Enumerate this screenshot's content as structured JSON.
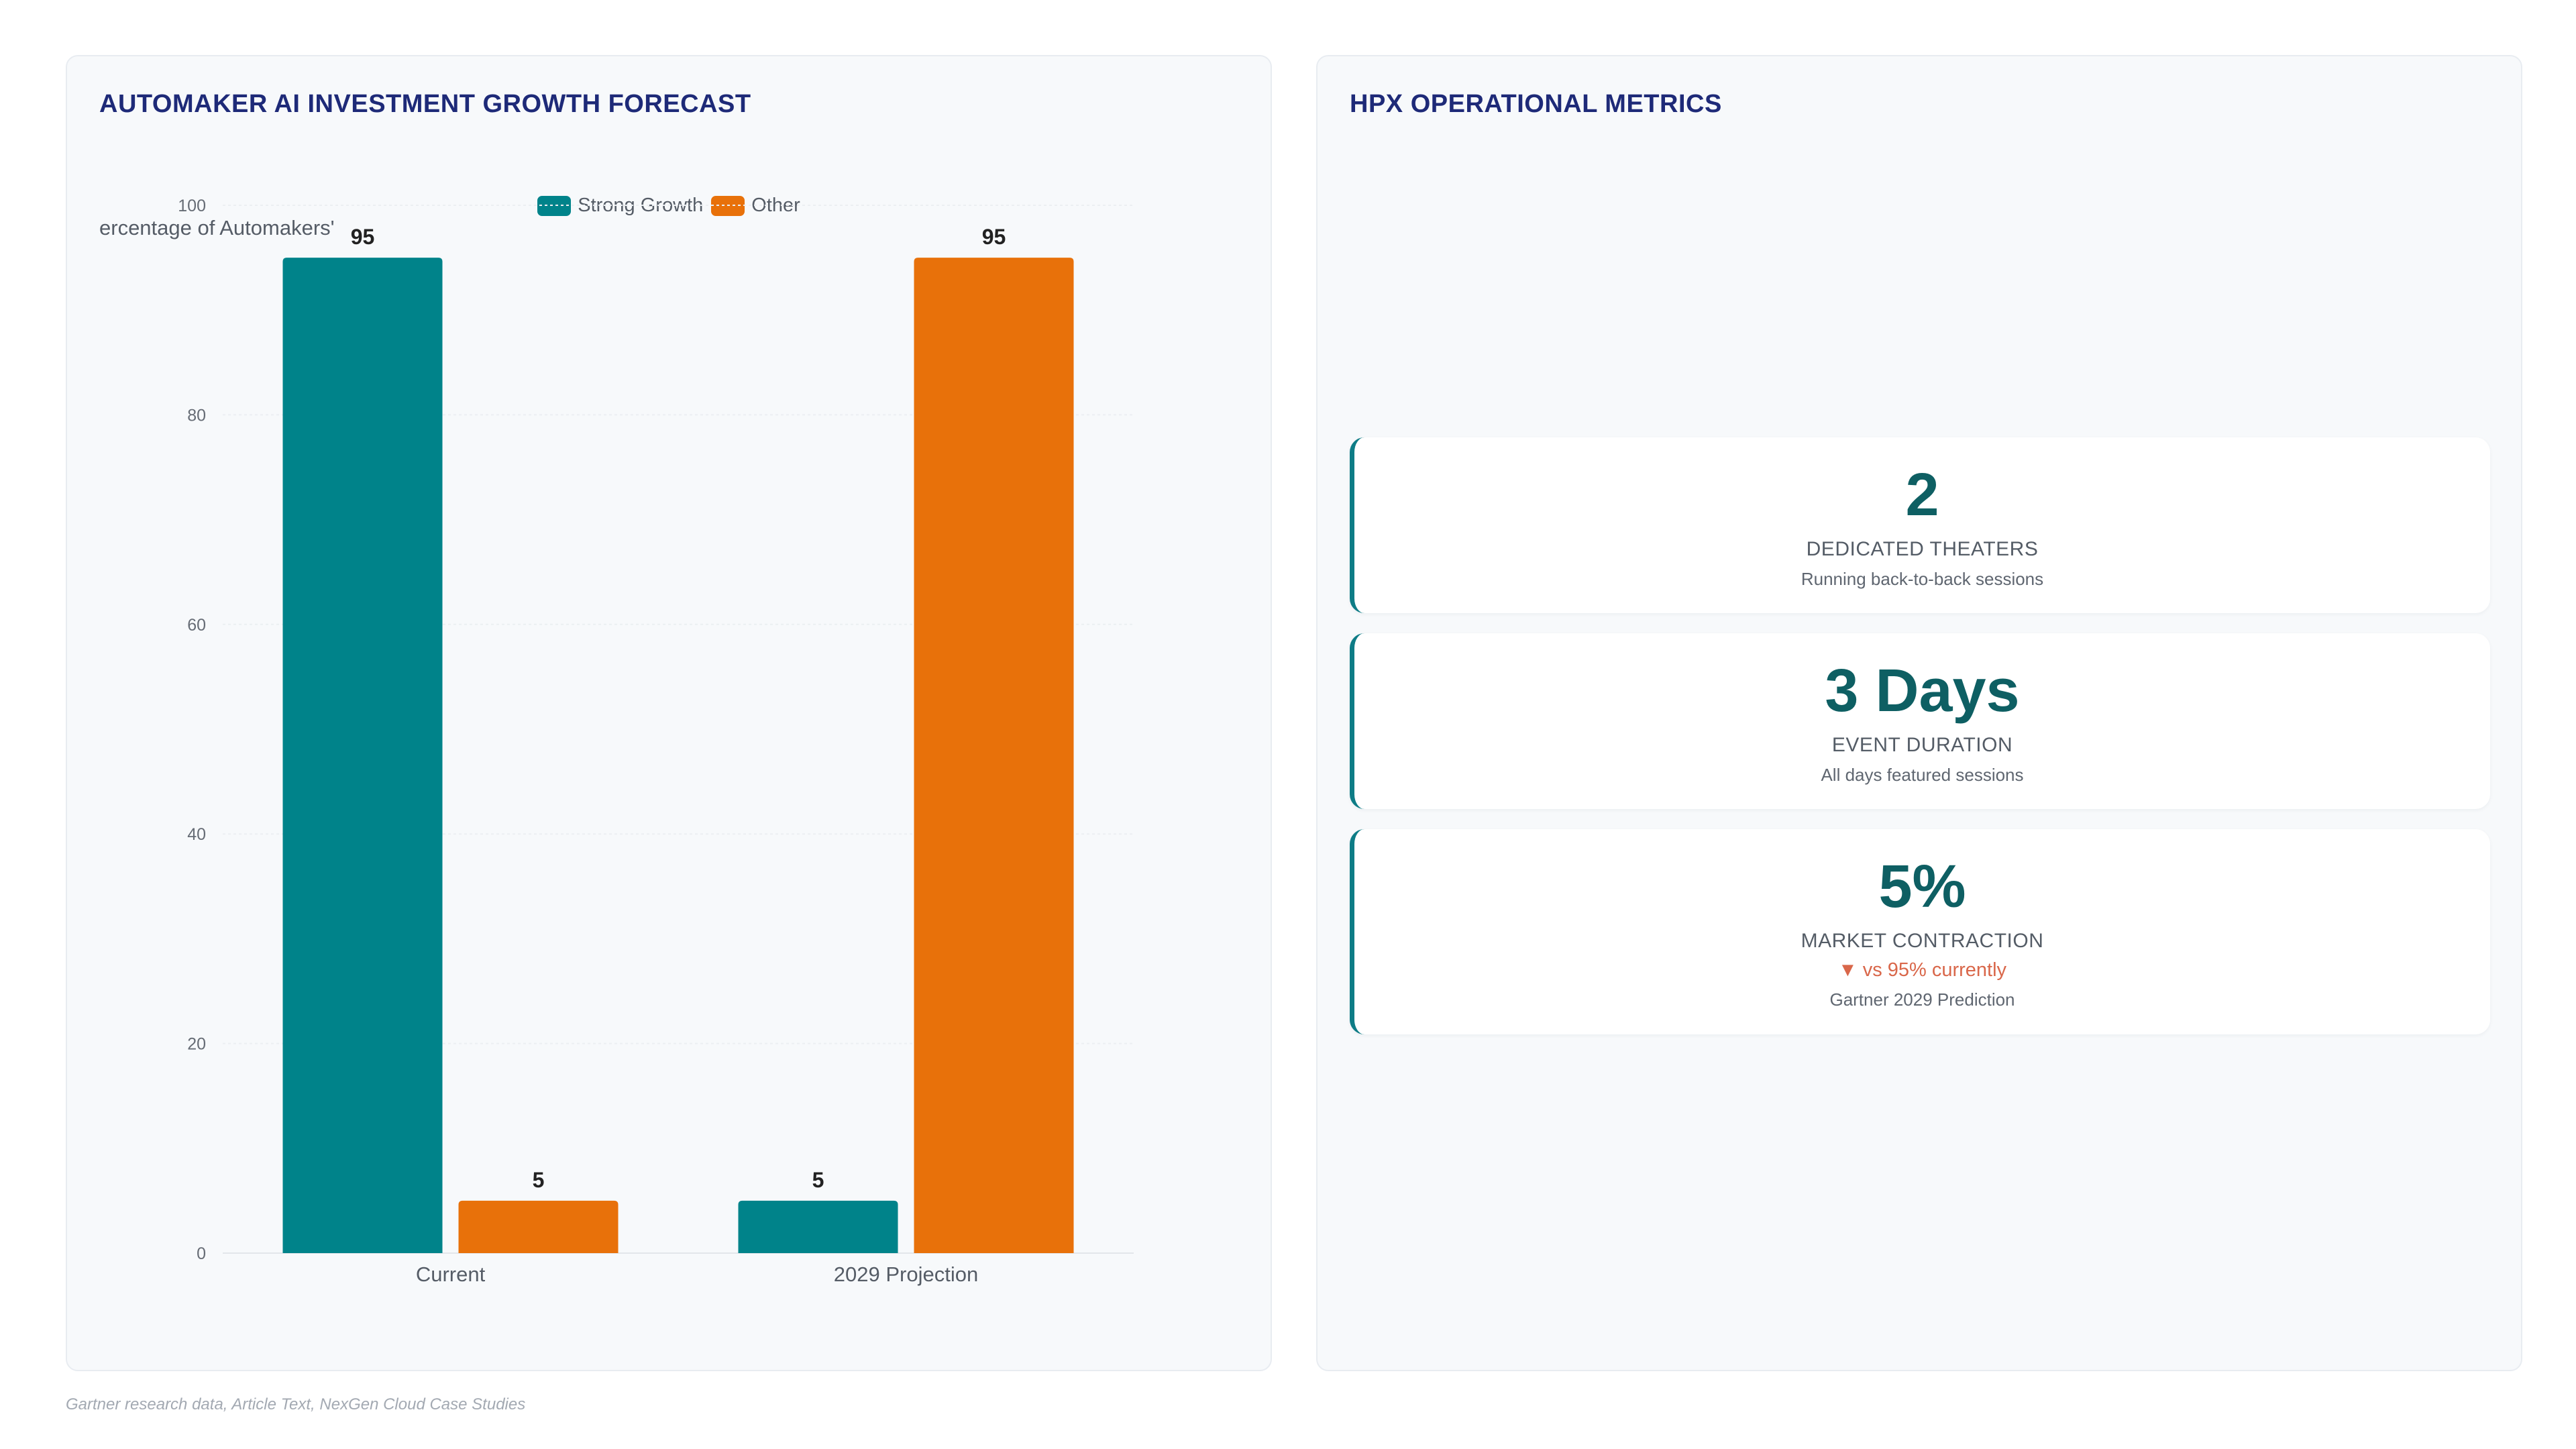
{
  "left_panel": {
    "title": "AUTOMAKER AI INVESTMENT GROWTH FORECAST"
  },
  "right_panel": {
    "title": "HPX OPERATIONAL METRICS",
    "metrics": [
      {
        "value": "2",
        "label": "DEDICATED THEATERS",
        "subtext": "Running back-to-back sessions"
      },
      {
        "value": "3 Days",
        "label": "EVENT DURATION",
        "subtext": "All days featured sessions"
      },
      {
        "value": "5%",
        "label": "MARKET CONTRACTION",
        "delta": "▼ vs 95% currently",
        "subtext": "Gartner 2029 Prediction"
      }
    ]
  },
  "footer": "Gartner research data, Article Text, NexGen Cloud Case Studies",
  "colors": {
    "strong_growth": "#00838a",
    "other": "#e8710a",
    "title": "#1e2a78",
    "metric_value": "#0e5f63",
    "delta_down": "#d9674a"
  },
  "chart_data": {
    "type": "bar",
    "title": "AUTOMAKER AI INVESTMENT GROWTH FORECAST",
    "categories": [
      "Current",
      "2029 Projection"
    ],
    "series": [
      {
        "name": "Strong Growth",
        "values": [
          95,
          5
        ],
        "color": "#00838a"
      },
      {
        "name": "Other",
        "values": [
          5,
          95
        ],
        "color": "#e8710a"
      }
    ],
    "xlabel": "",
    "ylabel": "Percentage of Automakers",
    "ylabel_shown": "'ercentage of Automakers",
    "ylim": [
      0,
      100
    ],
    "yticks": [
      0,
      20,
      40,
      60,
      80,
      100
    ],
    "grid": true,
    "legend": "top-center",
    "data_labels": true
  }
}
